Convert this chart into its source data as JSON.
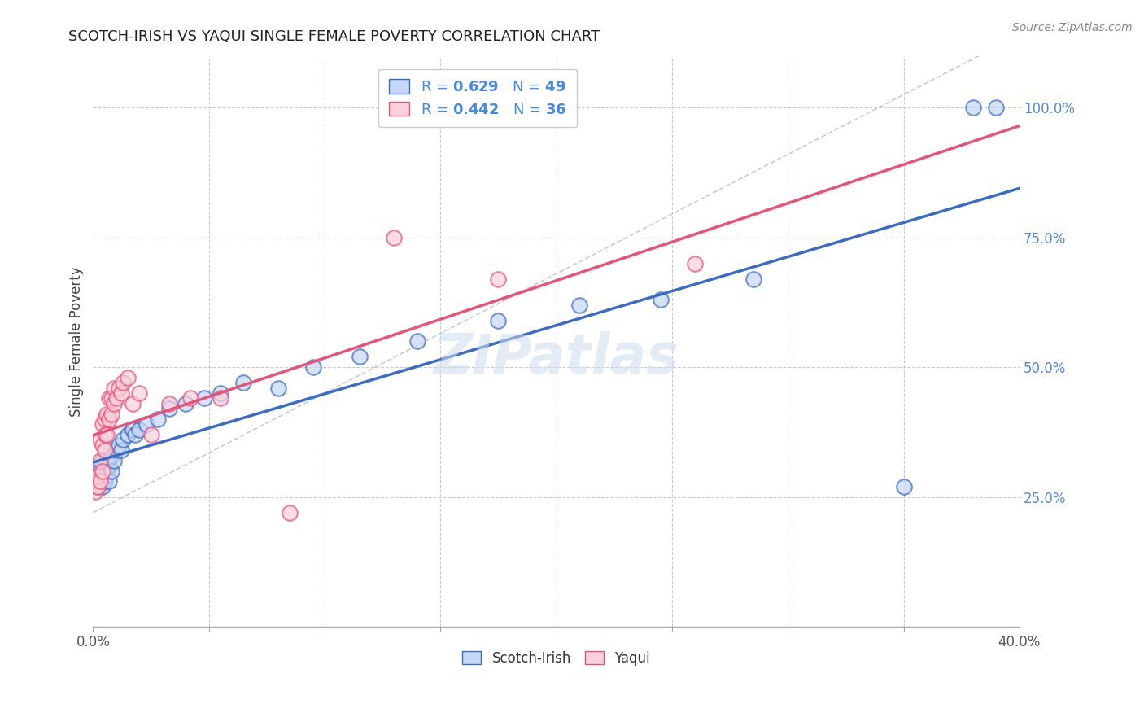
{
  "title": "SCOTCH-IRISH VS YAQUI SINGLE FEMALE POVERTY CORRELATION CHART",
  "source": "Source: ZipAtlas.com",
  "ylabel": "Single Female Poverty",
  "blue_R": 0.629,
  "blue_N": 49,
  "pink_R": 0.442,
  "pink_N": 36,
  "blue_color": "#92B4E3",
  "pink_color": "#F4A8B8",
  "blue_line_color": "#3A6BC8",
  "pink_line_color": "#E8527A",
  "blue_face": "#C5D8F5",
  "pink_face": "#FAD0DA",
  "xlim": [
    0.0,
    0.4
  ],
  "ylim": [
    0.0,
    1.1
  ],
  "scotch_irish_x": [
    0.001,
    0.001,
    0.001,
    0.002,
    0.002,
    0.002,
    0.003,
    0.003,
    0.003,
    0.003,
    0.004,
    0.004,
    0.004,
    0.005,
    0.005,
    0.005,
    0.006,
    0.006,
    0.007,
    0.007,
    0.008,
    0.008,
    0.009,
    0.01,
    0.011,
    0.012,
    0.013,
    0.015,
    0.017,
    0.018,
    0.02,
    0.023,
    0.028,
    0.033,
    0.04,
    0.048,
    0.055,
    0.065,
    0.08,
    0.095,
    0.115,
    0.14,
    0.175,
    0.21,
    0.245,
    0.285,
    0.35,
    0.38,
    0.39
  ],
  "scotch_irish_y": [
    0.27,
    0.28,
    0.29,
    0.27,
    0.28,
    0.3,
    0.27,
    0.28,
    0.29,
    0.3,
    0.27,
    0.28,
    0.32,
    0.28,
    0.29,
    0.31,
    0.3,
    0.32,
    0.28,
    0.31,
    0.3,
    0.33,
    0.32,
    0.34,
    0.35,
    0.34,
    0.36,
    0.37,
    0.38,
    0.37,
    0.38,
    0.39,
    0.4,
    0.42,
    0.43,
    0.44,
    0.45,
    0.47,
    0.46,
    0.5,
    0.52,
    0.55,
    0.59,
    0.62,
    0.63,
    0.67,
    0.27,
    1.0,
    1.0
  ],
  "yaqui_x": [
    0.001,
    0.001,
    0.002,
    0.002,
    0.003,
    0.003,
    0.003,
    0.004,
    0.004,
    0.004,
    0.005,
    0.005,
    0.005,
    0.006,
    0.006,
    0.007,
    0.007,
    0.008,
    0.008,
    0.009,
    0.009,
    0.01,
    0.011,
    0.012,
    0.013,
    0.015,
    0.017,
    0.02,
    0.025,
    0.033,
    0.042,
    0.055,
    0.085,
    0.13,
    0.175,
    0.26
  ],
  "yaqui_y": [
    0.26,
    0.28,
    0.27,
    0.29,
    0.28,
    0.32,
    0.36,
    0.3,
    0.35,
    0.39,
    0.34,
    0.37,
    0.4,
    0.37,
    0.41,
    0.4,
    0.44,
    0.41,
    0.44,
    0.43,
    0.46,
    0.44,
    0.46,
    0.45,
    0.47,
    0.48,
    0.43,
    0.45,
    0.37,
    0.43,
    0.44,
    0.44,
    0.22,
    0.75,
    0.67,
    0.7
  ],
  "watermark": "ZIPatlas",
  "background_color": "#FFFFFF",
  "grid_color": "#CCCCCC",
  "scatter_size": 180
}
